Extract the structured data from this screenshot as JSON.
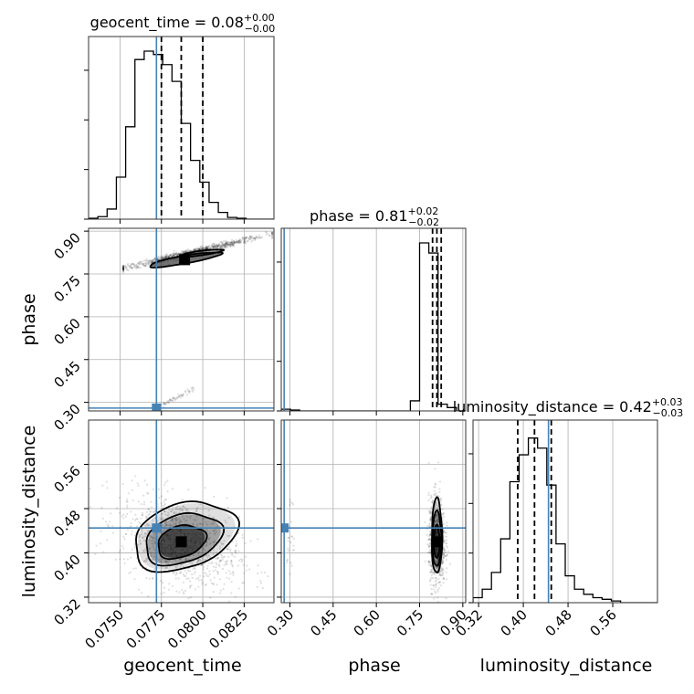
{
  "chart_data": {
    "type": "corner",
    "parameters": [
      "geocent_time",
      "phase",
      "luminosity_distance"
    ],
    "truths": {
      "geocent_time": 0.0772,
      "phase": 0.28,
      "luminosity_distance": 0.445
    },
    "axes": {
      "geocent_time": {
        "label": "geocent_time",
        "range": [
          0.0731,
          0.0843
        ],
        "ticks": [
          0.075,
          0.0775,
          0.08,
          0.0825
        ],
        "tick_labels": [
          "0.0750",
          "0.0775",
          "0.0800",
          "0.0825"
        ]
      },
      "phase": {
        "label": "phase",
        "range": [
          0.27,
          0.91
        ],
        "ticks": [
          0.3,
          0.45,
          0.6,
          0.75,
          0.9
        ],
        "tick_labels": [
          "0.30",
          "0.45",
          "0.60",
          "0.75",
          "0.90"
        ]
      },
      "luminosity_distance": {
        "label": "luminosity_distance",
        "range": [
          0.31,
          0.64
        ],
        "ticks": [
          0.32,
          0.4,
          0.48,
          0.56
        ],
        "tick_labels": [
          "0.32",
          "0.40",
          "0.48",
          "0.56"
        ]
      }
    },
    "titles": [
      {
        "param": "geocent_time",
        "main": "geocent_time = 0.08",
        "sup": "+0.00",
        "sub": "−0.00"
      },
      {
        "param": "phase",
        "main": "phase = 0.81",
        "sup": "+0.02",
        "sub": "−0.02"
      },
      {
        "param": "luminosity_distance",
        "main": "luminosity_distance = 0.42",
        "sup": "+0.03",
        "sub": "−0.03"
      }
    ],
    "marginals": {
      "geocent_time": {
        "bin_edges": [
          0.0731,
          0.07366,
          0.07422,
          0.07478,
          0.07534,
          0.0759,
          0.07646,
          0.07702,
          0.07758,
          0.07814,
          0.0787,
          0.07926,
          0.07982,
          0.08038,
          0.08094,
          0.0815,
          0.08206,
          0.08262,
          0.08318,
          0.08374,
          0.0843
        ],
        "counts": [
          0.005,
          0.015,
          0.06,
          0.25,
          0.55,
          0.95,
          1.0,
          0.98,
          0.92,
          0.82,
          0.57,
          0.35,
          0.22,
          0.1,
          0.04,
          0.01,
          0.005,
          0,
          0,
          0
        ],
        "quantiles": [
          0.0775,
          0.0787,
          0.08
        ]
      },
      "phase": {
        "bin_edges": [
          0.27,
          0.302,
          0.334,
          0.366,
          0.398,
          0.43,
          0.462,
          0.494,
          0.526,
          0.558,
          0.59,
          0.622,
          0.654,
          0.686,
          0.718,
          0.75,
          0.782,
          0.814,
          0.846,
          0.878,
          0.91
        ],
        "counts": [
          0.01,
          0.005,
          0,
          0,
          0,
          0,
          0,
          0,
          0,
          0,
          0,
          0,
          0,
          0,
          0.06,
          1.0,
          0.94,
          0.04,
          0.02,
          0
        ],
        "quantiles": [
          0.795,
          0.81,
          0.825
        ]
      },
      "luminosity_distance": {
        "bin_edges": [
          0.31,
          0.3265,
          0.343,
          0.3595,
          0.376,
          0.3925,
          0.409,
          0.4255,
          0.442,
          0.4585,
          0.475,
          0.4915,
          0.508,
          0.5245,
          0.541,
          0.5575,
          0.574,
          0.5905,
          0.607,
          0.6235,
          0.64
        ],
        "counts": [
          0.03,
          0.08,
          0.18,
          0.38,
          0.72,
          0.88,
          0.98,
          0.92,
          0.7,
          0.35,
          0.16,
          0.08,
          0.05,
          0.03,
          0.02,
          0.01,
          0,
          0,
          0,
          0
        ],
        "quantiles": [
          0.39,
          0.42,
          0.45
        ]
      }
    },
    "scatter_samples": {
      "geocent_time_phase": {
        "main_cluster": {
          "x_range": [
            0.0752,
            0.0842
          ],
          "phase_at_x_start": 0.77,
          "phase_at_x_end": 0.89
        },
        "minor_cluster": {
          "x_range": [
            0.0772,
            0.0795
          ],
          "phase_at_x_start": 0.28,
          "phase_at_x_end": 0.35
        }
      },
      "geocent_time_luminosity_distance": {
        "center": [
          0.0786,
          0.42
        ],
        "spread": [
          0.0018,
          0.045
        ]
      },
      "phase_luminosity_distance": {
        "center": [
          0.81,
          0.42
        ],
        "spread": [
          0.014,
          0.04
        ]
      }
    },
    "contours": {
      "geocent_time_luminosity_distance": [
        {
          "center": [
            0.0787,
            0.42
          ],
          "radii": [
            0.0015,
            0.028
          ],
          "tilt": -18
        },
        {
          "center": [
            0.0788,
            0.425
          ],
          "radii": [
            0.0024,
            0.043
          ],
          "tilt": -18
        },
        {
          "center": [
            0.0789,
            0.43
          ],
          "radii": [
            0.0032,
            0.058
          ],
          "tilt": -18
        }
      ],
      "phase_luminosity_distance": [
        {
          "center": [
            0.81,
            0.42
          ],
          "radii": [
            0.01,
            0.03
          ],
          "tilt": 0
        },
        {
          "center": [
            0.81,
            0.425
          ],
          "radii": [
            0.015,
            0.05
          ],
          "tilt": 0
        },
        {
          "center": [
            0.81,
            0.43
          ],
          "radii": [
            0.018,
            0.068
          ],
          "tilt": 0
        }
      ],
      "geocent_time_phase": [
        {
          "center": [
            0.0789,
            0.8
          ],
          "radii": [
            0.0022,
            0.014
          ],
          "tilt": -10
        },
        {
          "center": [
            0.0799,
            0.823
          ],
          "radii": [
            0.0013,
            0.008
          ],
          "tilt": -8
        }
      ]
    },
    "grid": true
  }
}
